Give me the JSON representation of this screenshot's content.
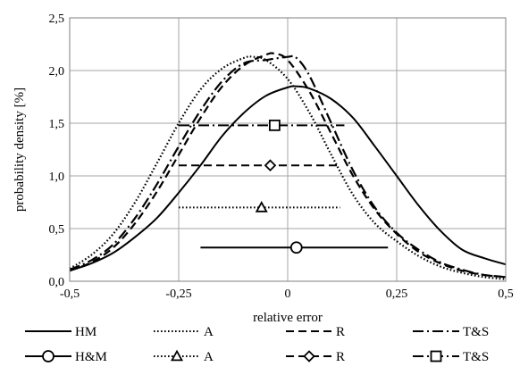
{
  "chart_data": {
    "type": "line",
    "xlabel": "relative error",
    "ylabel": "probability density [%]",
    "xlim": [
      -0.5,
      0.5
    ],
    "ylim": [
      0,
      2.5
    ],
    "xticks": [
      -0.5,
      -0.25,
      0,
      0.25,
      0.5
    ],
    "xtick_labels": [
      "-0,5",
      "-0,25",
      "0",
      "0,25",
      "0,5"
    ],
    "yticks": [
      0,
      0.5,
      1.0,
      1.5,
      2.0,
      2.5
    ],
    "ytick_labels": [
      "0,0",
      "0,5",
      "1,0",
      "1,5",
      "2,0",
      "2,5"
    ],
    "grid": true,
    "legend_position": "bottom",
    "series": [
      {
        "name": "HM",
        "style": "solid",
        "color": "#000000",
        "x": [
          -0.5,
          -0.45,
          -0.4,
          -0.35,
          -0.3,
          -0.25,
          -0.2,
          -0.15,
          -0.1,
          -0.05,
          0.0,
          0.02,
          0.05,
          0.1,
          0.15,
          0.2,
          0.25,
          0.3,
          0.35,
          0.4,
          0.45,
          0.5
        ],
        "y": [
          0.1,
          0.17,
          0.27,
          0.42,
          0.6,
          0.84,
          1.1,
          1.38,
          1.6,
          1.76,
          1.84,
          1.85,
          1.83,
          1.73,
          1.55,
          1.28,
          1.0,
          0.72,
          0.48,
          0.3,
          0.22,
          0.16
        ]
      },
      {
        "name": "A",
        "style": "dotted",
        "color": "#000000",
        "x": [
          -0.5,
          -0.45,
          -0.4,
          -0.35,
          -0.3,
          -0.25,
          -0.2,
          -0.15,
          -0.1,
          -0.08,
          -0.05,
          0.0,
          0.05,
          0.1,
          0.15,
          0.2,
          0.25,
          0.3,
          0.35,
          0.4,
          0.45,
          0.5
        ],
        "y": [
          0.12,
          0.25,
          0.45,
          0.75,
          1.12,
          1.5,
          1.82,
          2.02,
          2.12,
          2.13,
          2.1,
          1.92,
          1.6,
          1.2,
          0.82,
          0.55,
          0.38,
          0.24,
          0.14,
          0.08,
          0.04,
          0.02
        ]
      },
      {
        "name": "R",
        "style": "dashed",
        "color": "#000000",
        "x": [
          -0.5,
          -0.45,
          -0.4,
          -0.35,
          -0.3,
          -0.25,
          -0.2,
          -0.15,
          -0.1,
          -0.05,
          -0.03,
          0.0,
          0.05,
          0.1,
          0.15,
          0.2,
          0.25,
          0.3,
          0.35,
          0.4,
          0.45,
          0.5
        ],
        "y": [
          0.1,
          0.18,
          0.32,
          0.55,
          0.85,
          1.2,
          1.55,
          1.85,
          2.05,
          2.15,
          2.16,
          2.1,
          1.8,
          1.4,
          1.0,
          0.68,
          0.45,
          0.28,
          0.17,
          0.1,
          0.06,
          0.04
        ]
      },
      {
        "name": "T&S",
        "style": "dashdot",
        "color": "#000000",
        "x": [
          -0.5,
          -0.45,
          -0.4,
          -0.35,
          -0.3,
          -0.25,
          -0.2,
          -0.15,
          -0.1,
          -0.05,
          0.0,
          0.02,
          0.05,
          0.1,
          0.15,
          0.2,
          0.25,
          0.3,
          0.35,
          0.4,
          0.45,
          0.5
        ],
        "y": [
          0.11,
          0.2,
          0.35,
          0.6,
          0.92,
          1.28,
          1.62,
          1.9,
          2.07,
          2.1,
          2.13,
          2.12,
          1.95,
          1.5,
          1.05,
          0.7,
          0.46,
          0.3,
          0.18,
          0.11,
          0.06,
          0.04
        ]
      }
    ],
    "intervals": [
      {
        "name": "H&M",
        "style": "solid",
        "marker": "circle",
        "xmin": -0.2,
        "xmax": 0.23,
        "mean": 0.02,
        "y": 0.32
      },
      {
        "name": "A",
        "style": "dotted",
        "marker": "triangle",
        "xmin": -0.25,
        "xmax": 0.12,
        "mean": -0.06,
        "y": 0.7
      },
      {
        "name": "R",
        "style": "dashed",
        "marker": "diamond",
        "xmin": -0.25,
        "xmax": 0.12,
        "mean": -0.04,
        "y": 1.1
      },
      {
        "name": "T&S",
        "style": "dashdot",
        "marker": "square",
        "xmin": -0.25,
        "xmax": 0.13,
        "mean": -0.03,
        "y": 1.48
      }
    ]
  }
}
